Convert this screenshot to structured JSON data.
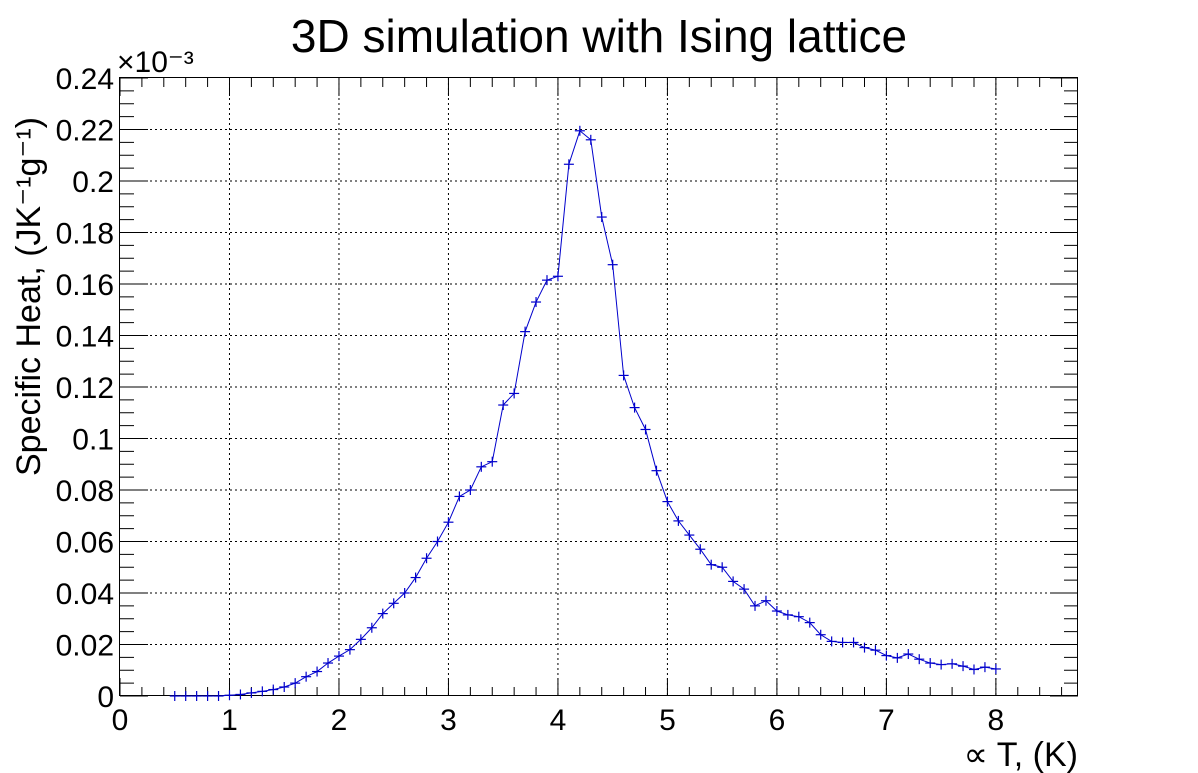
{
  "chart_data": {
    "type": "line",
    "title": "3D simulation with Ising lattice",
    "xlabel": "∝ T, (K)",
    "ylabel": "Specific Heat, (JK⁻¹g⁻¹)",
    "y_multiplier": "×10⁻³",
    "xlim": [
      0,
      8.75
    ],
    "ylim": [
      0,
      0.24
    ],
    "grid": true,
    "x_ticks": [
      "0",
      "1",
      "2",
      "3",
      "4",
      "5",
      "6",
      "7",
      "8"
    ],
    "y_ticks": [
      "0",
      "0.02",
      "0.04",
      "0.06",
      "0.08",
      "0.1",
      "0.12",
      "0.14",
      "0.16",
      "0.18",
      "0.2",
      "0.22",
      "0.24"
    ],
    "series_color": "#0000cc",
    "series": [
      {
        "x": [
          0.5,
          0.6,
          0.7,
          0.8,
          0.9,
          1.0,
          1.1,
          1.2,
          1.3,
          1.4,
          1.5,
          1.6,
          1.7,
          1.8,
          1.9,
          2.0,
          2.1,
          2.2,
          2.3,
          2.4,
          2.5,
          2.6,
          2.7,
          2.8,
          2.9,
          3.0,
          3.1,
          3.2,
          3.3,
          3.4,
          3.5,
          3.6,
          3.7,
          3.8,
          3.9,
          4.0,
          4.1,
          4.2,
          4.3,
          4.4,
          4.5,
          4.6,
          4.7,
          4.8,
          4.9,
          5.0,
          5.1,
          5.2,
          5.3,
          5.4,
          5.5,
          5.6,
          5.7,
          5.8,
          5.9,
          6.0,
          6.1,
          6.2,
          6.3,
          6.4,
          6.5,
          6.6,
          6.7,
          6.8,
          6.9,
          7.0,
          7.1,
          7.2,
          7.3,
          7.4,
          7.5,
          7.6,
          7.7,
          7.8,
          7.9,
          8.0
        ],
        "values": [
          0.0,
          0.0,
          0.0,
          0.0,
          0.0,
          0.0003,
          0.0006,
          0.0012,
          0.0018,
          0.0025,
          0.0035,
          0.005,
          0.0075,
          0.0095,
          0.0128,
          0.0155,
          0.018,
          0.022,
          0.0265,
          0.032,
          0.036,
          0.04,
          0.046,
          0.0535,
          0.06,
          0.0675,
          0.0775,
          0.08,
          0.089,
          0.091,
          0.113,
          0.1175,
          0.1415,
          0.153,
          0.1615,
          0.163,
          0.2065,
          0.2195,
          0.216,
          0.186,
          0.1675,
          0.1245,
          0.112,
          0.1035,
          0.0875,
          0.0755,
          0.068,
          0.0625,
          0.057,
          0.051,
          0.05,
          0.0445,
          0.0415,
          0.035,
          0.037,
          0.033,
          0.0315,
          0.0308,
          0.0285,
          0.0238,
          0.0212,
          0.0208,
          0.0208,
          0.0188,
          0.0178,
          0.0157,
          0.0148,
          0.0163,
          0.0143,
          0.0128,
          0.0122,
          0.0125,
          0.0116,
          0.0103,
          0.0112,
          0.0105
        ]
      }
    ]
  }
}
